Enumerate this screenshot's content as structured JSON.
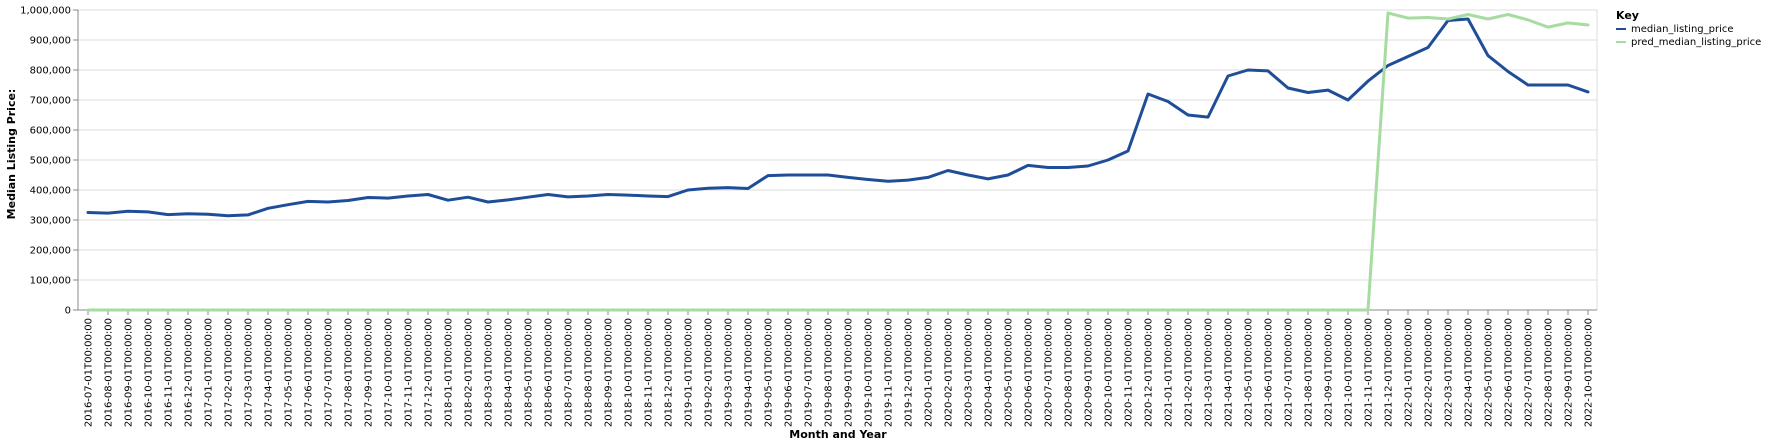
{
  "chart_data": {
    "type": "line",
    "xlabel": "Month and Year",
    "ylabel": "Median Listing Price:",
    "ylim": [
      0,
      1000000
    ],
    "yticks": [
      "0",
      "100,000",
      "200,000",
      "300,000",
      "400,000",
      "500,000",
      "600,000",
      "700,000",
      "800,000",
      "900,000",
      "1,000,000"
    ],
    "grid": true,
    "legend": {
      "title": "Key",
      "position": "top-right"
    },
    "x": [
      "2016-07-01T00:00:00",
      "2016-08-01T00:00:00",
      "2016-09-01T00:00:00",
      "2016-10-01T00:00:00",
      "2016-11-01T00:00:00",
      "2016-12-01T00:00:00",
      "2017-01-01T00:00:00",
      "2017-02-01T00:00:00",
      "2017-03-01T00:00:00",
      "2017-04-01T00:00:00",
      "2017-05-01T00:00:00",
      "2017-06-01T00:00:00",
      "2017-07-01T00:00:00",
      "2017-08-01T00:00:00",
      "2017-09-01T00:00:00",
      "2017-10-01T00:00:00",
      "2017-11-01T00:00:00",
      "2017-12-01T00:00:00",
      "2018-01-01T00:00:00",
      "2018-02-01T00:00:00",
      "2018-03-01T00:00:00",
      "2018-04-01T00:00:00",
      "2018-05-01T00:00:00",
      "2018-06-01T00:00:00",
      "2018-07-01T00:00:00",
      "2018-08-01T00:00:00",
      "2018-09-01T00:00:00",
      "2018-10-01T00:00:00",
      "2018-11-01T00:00:00",
      "2018-12-01T00:00:00",
      "2019-01-01T00:00:00",
      "2019-02-01T00:00:00",
      "2019-03-01T00:00:00",
      "2019-04-01T00:00:00",
      "2019-05-01T00:00:00",
      "2019-06-01T00:00:00",
      "2019-07-01T00:00:00",
      "2019-08-01T00:00:00",
      "2019-09-01T00:00:00",
      "2019-10-01T00:00:00",
      "2019-11-01T00:00:00",
      "2019-12-01T00:00:00",
      "2020-01-01T00:00:00",
      "2020-02-01T00:00:00",
      "2020-03-01T00:00:00",
      "2020-04-01T00:00:00",
      "2020-05-01T00:00:00",
      "2020-06-01T00:00:00",
      "2020-07-01T00:00:00",
      "2020-08-01T00:00:00",
      "2020-09-01T00:00:00",
      "2020-10-01T00:00:00",
      "2020-11-01T00:00:00",
      "2020-12-01T00:00:00",
      "2021-01-01T00:00:00",
      "2021-02-01T00:00:00",
      "2021-03-01T00:00:00",
      "2021-04-01T00:00:00",
      "2021-05-01T00:00:00",
      "2021-06-01T00:00:00",
      "2021-07-01T00:00:00",
      "2021-08-01T00:00:00",
      "2021-09-01T00:00:00",
      "2021-10-01T00:00:00",
      "2021-11-01T00:00:00",
      "2021-12-01T00:00:00",
      "2022-01-01T00:00:00",
      "2022-02-01T00:00:00",
      "2022-03-01T00:00:00",
      "2022-04-01T00:00:00",
      "2022-05-01T00:00:00",
      "2022-06-01T00:00:00",
      "2022-07-01T00:00:00",
      "2022-08-01T00:00:00",
      "2022-09-01T00:00:00",
      "2022-10-01T00:00:00"
    ],
    "series": [
      {
        "name": "median_listing_price",
        "color": "#1f4e99",
        "values": [
          325000,
          323000,
          329000,
          327000,
          318000,
          321000,
          319000,
          314000,
          317000,
          339000,
          351000,
          362000,
          360000,
          365000,
          375000,
          373000,
          380000,
          385000,
          366000,
          376000,
          360000,
          367000,
          376000,
          385000,
          377000,
          380000,
          385000,
          383000,
          380000,
          378000,
          400000,
          406000,
          408000,
          405000,
          448000,
          450000,
          450000,
          450000,
          442000,
          435000,
          429000,
          433000,
          442000,
          465000,
          450000,
          437000,
          450000,
          482000,
          475000,
          475000,
          480000,
          500000,
          530000,
          720000,
          695000,
          650000,
          643000,
          780000,
          800000,
          797000,
          740000,
          725000,
          733000,
          700000,
          763000,
          815000,
          845000,
          875000,
          965000,
          970000,
          848000,
          795000,
          750000,
          750000,
          750000,
          727000
        ]
      },
      {
        "name": "pred_median_listing_price",
        "color": "#a6dca0",
        "values": [
          0,
          0,
          0,
          0,
          0,
          0,
          0,
          0,
          0,
          0,
          0,
          0,
          0,
          0,
          0,
          0,
          0,
          0,
          0,
          0,
          0,
          0,
          0,
          0,
          0,
          0,
          0,
          0,
          0,
          0,
          0,
          0,
          0,
          0,
          0,
          0,
          0,
          0,
          0,
          0,
          0,
          0,
          0,
          0,
          0,
          0,
          0,
          0,
          0,
          0,
          0,
          0,
          0,
          0,
          0,
          0,
          0,
          0,
          0,
          0,
          0,
          0,
          0,
          0,
          0,
          990000,
          973000,
          975000,
          970000,
          985000,
          970000,
          985000,
          967000,
          943000,
          957000,
          950000
        ]
      }
    ]
  }
}
